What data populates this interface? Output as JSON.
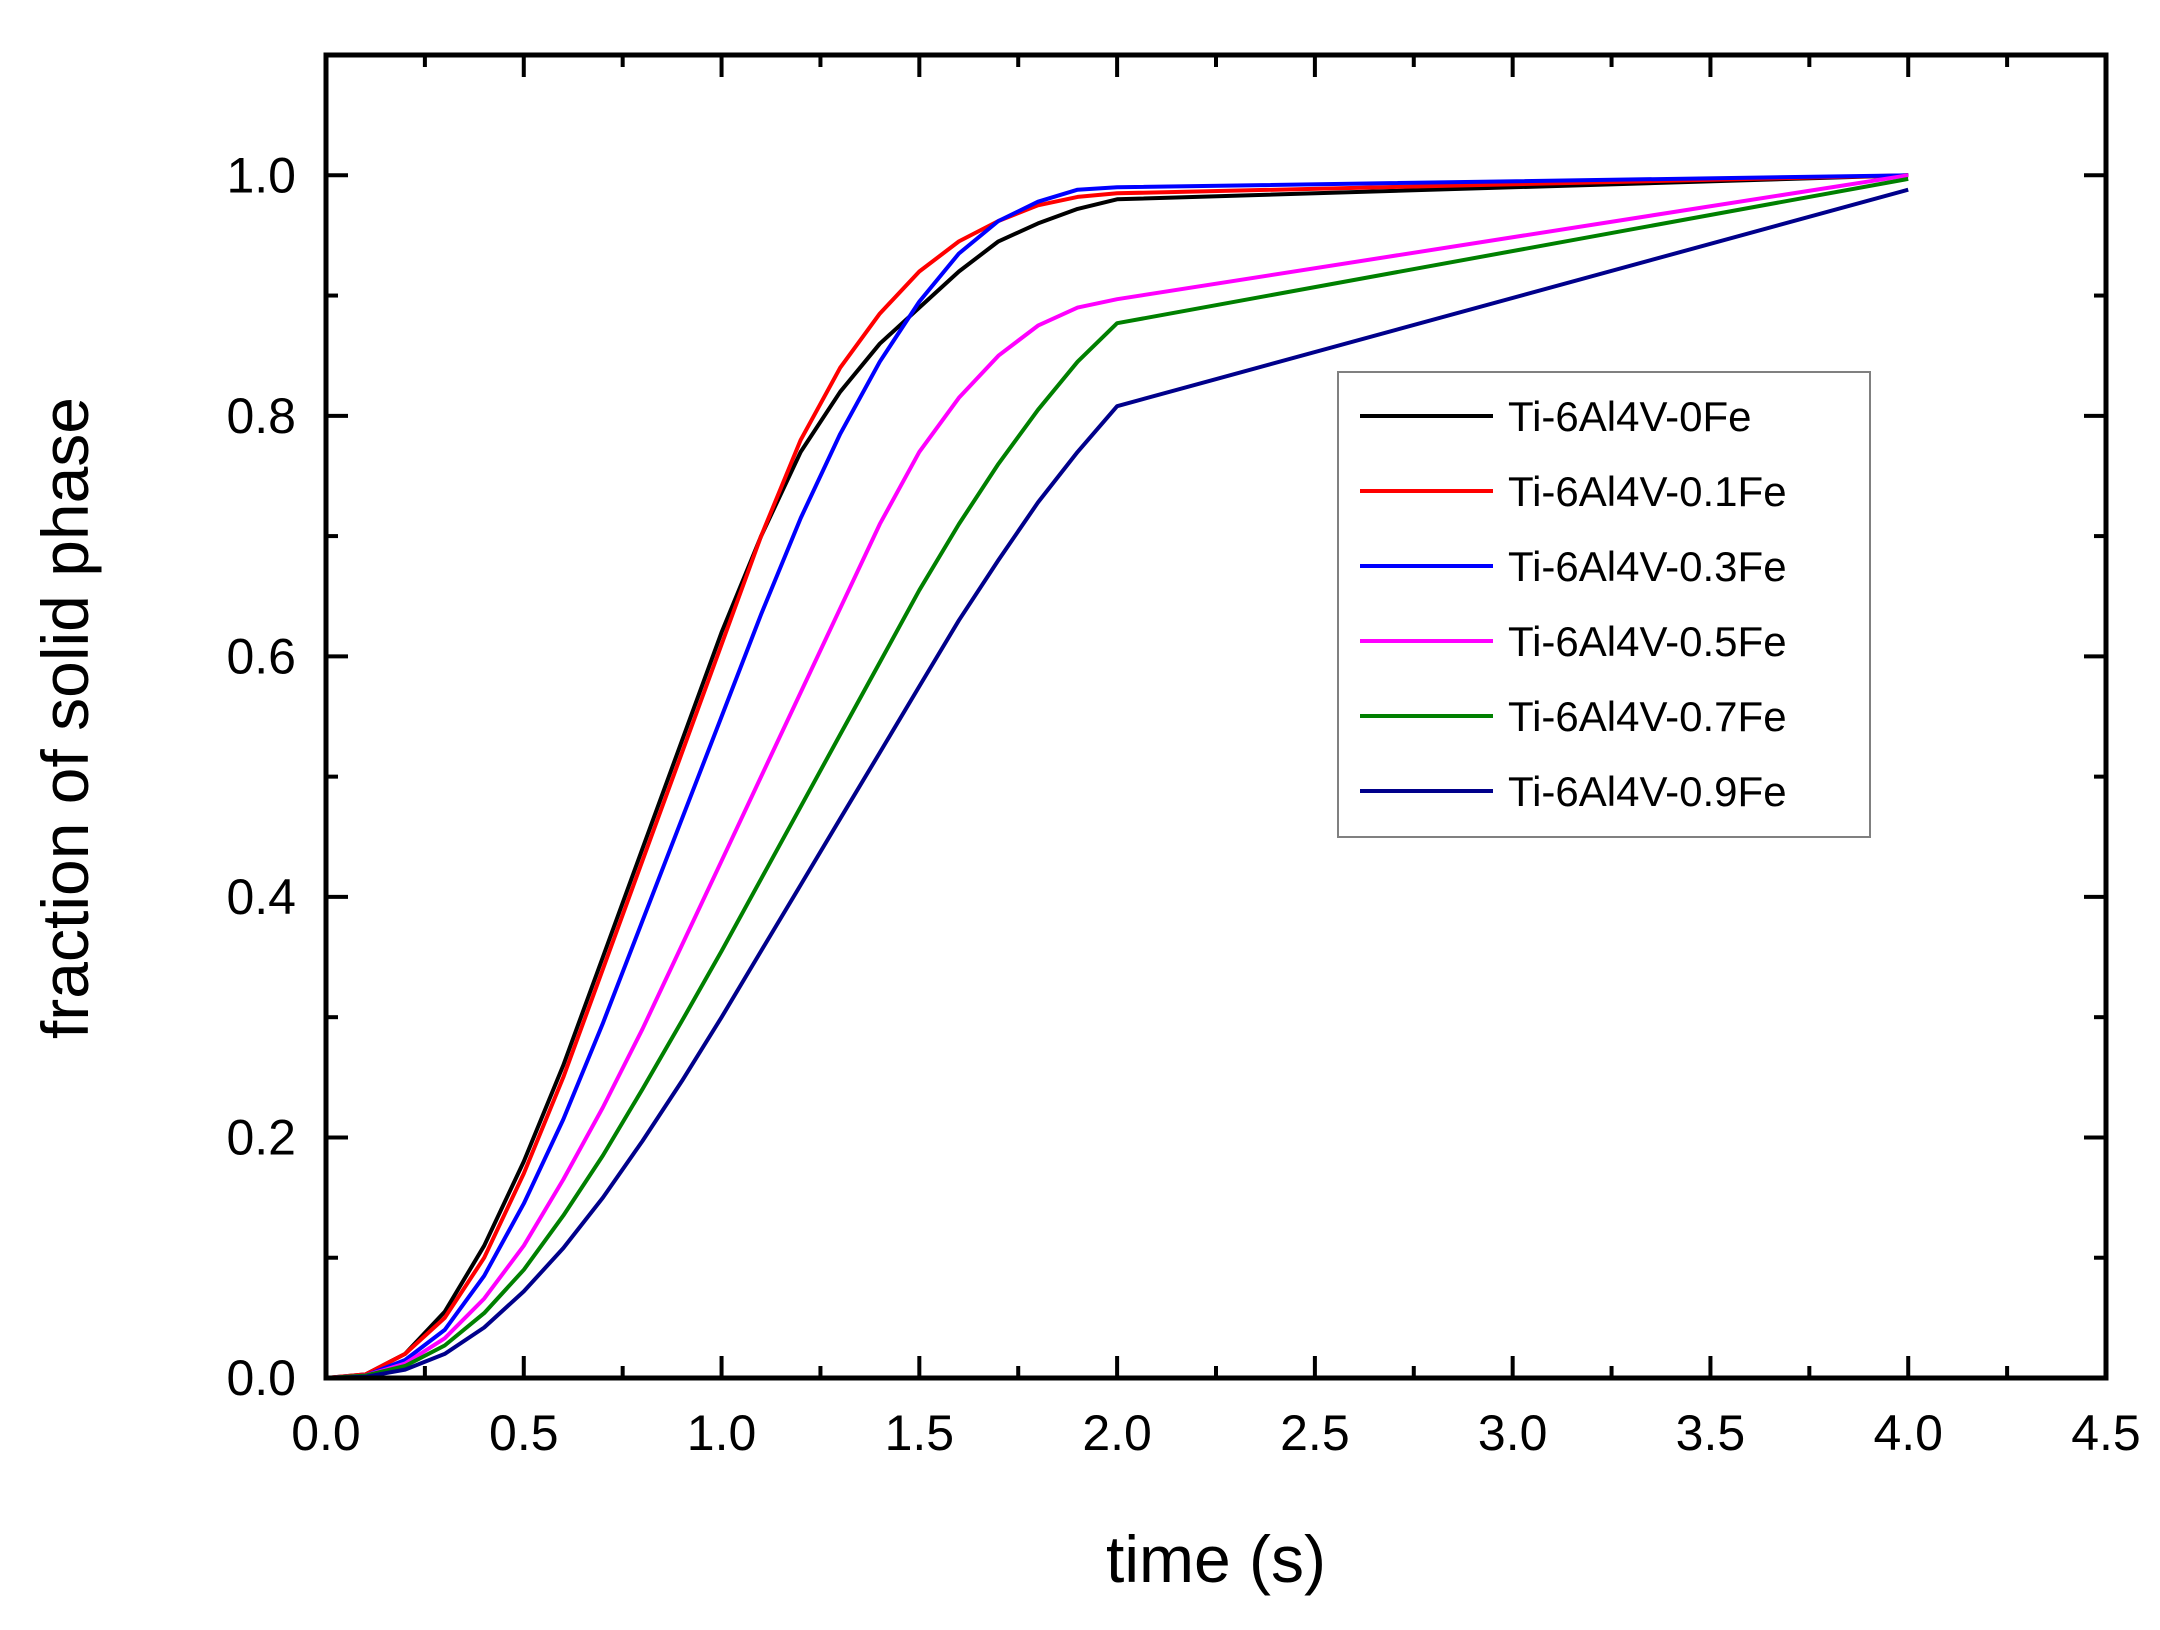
{
  "chart_data": {
    "type": "line",
    "title": "",
    "xlabel": "time (s)",
    "ylabel": "fraction of solid phase",
    "xlim": [
      0,
      4.5
    ],
    "ylim": [
      0,
      1.1
    ],
    "xticks": [
      0,
      0.5,
      1.0,
      1.5,
      2.0,
      2.5,
      3.0,
      3.5,
      4.0,
      4.5
    ],
    "xtick_labels": [
      "0.0",
      "0.5",
      "1.0",
      "1.5",
      "2.0",
      "2.5",
      "3.0",
      "3.5",
      "4.0",
      "4.5"
    ],
    "yticks": [
      0,
      0.2,
      0.4,
      0.6,
      0.8,
      1.0
    ],
    "ytick_labels": [
      "0.0",
      "0.2",
      "0.4",
      "0.6",
      "0.8",
      "1.0"
    ],
    "grid": false,
    "legend_position": "right",
    "series": [
      {
        "name": "Ti-6Al4V-0Fe",
        "color": "#000000",
        "x": [
          0,
          0.1,
          0.2,
          0.3,
          0.4,
          0.5,
          0.6,
          0.7,
          0.8,
          0.9,
          1.0,
          1.1,
          1.2,
          1.3,
          1.4,
          1.5,
          1.6,
          1.7,
          1.8,
          1.9,
          2.0,
          4.0
        ],
        "y": [
          0,
          0.003,
          0.02,
          0.055,
          0.11,
          0.18,
          0.26,
          0.35,
          0.44,
          0.53,
          0.62,
          0.7,
          0.77,
          0.82,
          0.86,
          0.89,
          0.92,
          0.945,
          0.96,
          0.972,
          0.98,
          1.0
        ]
      },
      {
        "name": "Ti-6Al4V-0.1Fe",
        "color": "#ff0000",
        "x": [
          0,
          0.1,
          0.2,
          0.3,
          0.4,
          0.5,
          0.6,
          0.7,
          0.8,
          0.9,
          1.0,
          1.1,
          1.2,
          1.3,
          1.4,
          1.5,
          1.6,
          1.7,
          1.8,
          1.9,
          2.0,
          4.0
        ],
        "y": [
          0,
          0.003,
          0.02,
          0.05,
          0.1,
          0.17,
          0.25,
          0.34,
          0.43,
          0.52,
          0.61,
          0.7,
          0.78,
          0.84,
          0.885,
          0.92,
          0.945,
          0.962,
          0.975,
          0.982,
          0.985,
          1.0
        ]
      },
      {
        "name": "Ti-6Al4V-0.3Fe",
        "color": "#0000ff",
        "x": [
          0,
          0.1,
          0.2,
          0.3,
          0.4,
          0.5,
          0.6,
          0.7,
          0.8,
          0.9,
          1.0,
          1.1,
          1.2,
          1.3,
          1.4,
          1.5,
          1.6,
          1.7,
          1.8,
          1.9,
          2.0,
          4.0
        ],
        "y": [
          0,
          0.002,
          0.015,
          0.04,
          0.085,
          0.145,
          0.215,
          0.295,
          0.38,
          0.465,
          0.55,
          0.635,
          0.715,
          0.785,
          0.845,
          0.895,
          0.935,
          0.962,
          0.978,
          0.988,
          0.99,
          1.0
        ]
      },
      {
        "name": "Ti-6Al4V-0.5Fe",
        "color": "#ff00ff",
        "x": [
          0,
          0.1,
          0.2,
          0.3,
          0.4,
          0.5,
          0.6,
          0.7,
          0.8,
          0.9,
          1.0,
          1.1,
          1.2,
          1.3,
          1.4,
          1.5,
          1.6,
          1.7,
          1.8,
          1.9,
          2.0,
          4.0
        ],
        "y": [
          0,
          0.002,
          0.012,
          0.033,
          0.066,
          0.11,
          0.165,
          0.225,
          0.29,
          0.36,
          0.43,
          0.5,
          0.57,
          0.64,
          0.71,
          0.77,
          0.815,
          0.85,
          0.875,
          0.89,
          0.897,
          1.0
        ]
      },
      {
        "name": "Ti-6Al4V-0.7Fe",
        "color": "#008000",
        "x": [
          0,
          0.1,
          0.2,
          0.3,
          0.4,
          0.5,
          0.6,
          0.7,
          0.8,
          0.9,
          1.0,
          1.1,
          1.2,
          1.3,
          1.4,
          1.5,
          1.6,
          1.7,
          1.8,
          1.9,
          2.0,
          4.0
        ],
        "y": [
          0,
          0.002,
          0.01,
          0.027,
          0.054,
          0.09,
          0.135,
          0.185,
          0.24,
          0.297,
          0.355,
          0.415,
          0.475,
          0.535,
          0.595,
          0.655,
          0.71,
          0.76,
          0.805,
          0.845,
          0.877,
          0.997
        ]
      },
      {
        "name": "Ti-6Al4V-0.9Fe",
        "color": "#00008b",
        "x": [
          0,
          0.1,
          0.2,
          0.3,
          0.4,
          0.5,
          0.6,
          0.7,
          0.8,
          0.9,
          1.0,
          1.1,
          1.2,
          1.3,
          1.4,
          1.5,
          1.6,
          1.7,
          1.8,
          1.9,
          2.0,
          4.0
        ],
        "y": [
          0,
          0.001,
          0.007,
          0.02,
          0.042,
          0.072,
          0.108,
          0.15,
          0.197,
          0.247,
          0.3,
          0.355,
          0.41,
          0.465,
          0.52,
          0.575,
          0.63,
          0.68,
          0.728,
          0.77,
          0.808,
          0.988
        ]
      }
    ]
  }
}
